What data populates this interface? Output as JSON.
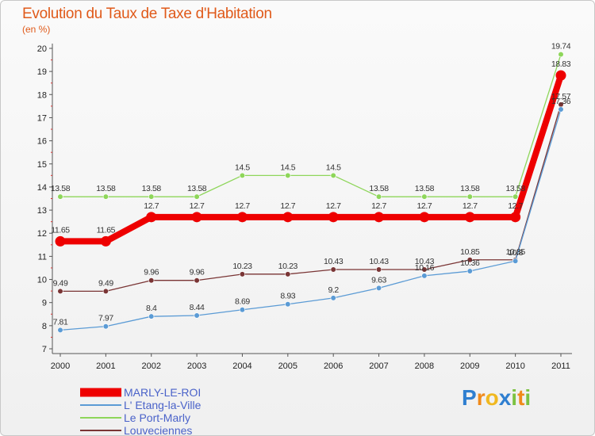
{
  "chart_data": {
    "type": "line",
    "title": "Evolution du Taux de Taxe d'Habitation",
    "subtitle": "(en %)",
    "x": [
      "2000",
      "2001",
      "2002",
      "2003",
      "2004",
      "2005",
      "2006",
      "2007",
      "2008",
      "2009",
      "2010",
      "2011"
    ],
    "ylim": [
      7,
      20
    ],
    "yticks": [
      "7",
      "8",
      "9",
      "10",
      "11",
      "12",
      "13",
      "14",
      "15",
      "16",
      "17",
      "18",
      "19",
      "20"
    ],
    "grid": false,
    "series": [
      {
        "name": "MARLY-LE-ROI",
        "color": "#ee0000",
        "values": [
          11.65,
          11.65,
          12.7,
          12.7,
          12.7,
          12.7,
          12.7,
          12.7,
          12.7,
          12.7,
          12.7,
          18.83
        ],
        "labels": [
          "11.65",
          "11.65",
          "12.7",
          "12.7",
          "12.7",
          "12.7",
          "12.7",
          "12.7",
          "12.7",
          "12.7",
          "12.7",
          "18.83"
        ]
      },
      {
        "name": "L' Etang-la-Ville",
        "color": "#5b9bd5",
        "values": [
          7.81,
          7.97,
          8.4,
          8.44,
          8.69,
          8.93,
          9.2,
          9.63,
          10.16,
          10.36,
          10.8,
          17.36
        ],
        "labels": [
          "7.81",
          "7.97",
          "8.4",
          "8.44",
          "8.69",
          "8.93",
          "9.2",
          "9.63",
          "10.16",
          "10.36",
          "10.8",
          "17.36"
        ]
      },
      {
        "name": "Le Port-Marly",
        "color": "#8ed65a",
        "values": [
          13.58,
          13.58,
          13.58,
          13.58,
          14.5,
          14.5,
          14.5,
          13.58,
          13.58,
          13.58,
          13.58,
          19.74
        ],
        "labels": [
          "13.58",
          "13.58",
          "13.58",
          "13.58",
          "14.5",
          "14.5",
          "14.5",
          "13.58",
          "13.58",
          "13.58",
          "13.58",
          "19.74"
        ]
      },
      {
        "name": "Louveciennes",
        "color": "#7a3535",
        "values": [
          9.49,
          9.49,
          9.96,
          9.96,
          10.23,
          10.23,
          10.43,
          10.43,
          10.43,
          10.85,
          10.85,
          17.57
        ],
        "labels": [
          "9.49",
          "9.49",
          "9.96",
          "9.96",
          "10.23",
          "10.23",
          "10.43",
          "10.43",
          "10.43",
          "10.85",
          "10.85",
          "17.57"
        ]
      }
    ]
  },
  "logo": {
    "text": "Proxiti",
    "letters": [
      "P",
      "r",
      "o",
      "x",
      "i",
      "t",
      "i"
    ],
    "colors": [
      "#2f7fd0",
      "#f08a1a",
      "#f0b820",
      "#2f7fd0",
      "#7cc242",
      "#f08a1a",
      "#7cc242"
    ]
  }
}
